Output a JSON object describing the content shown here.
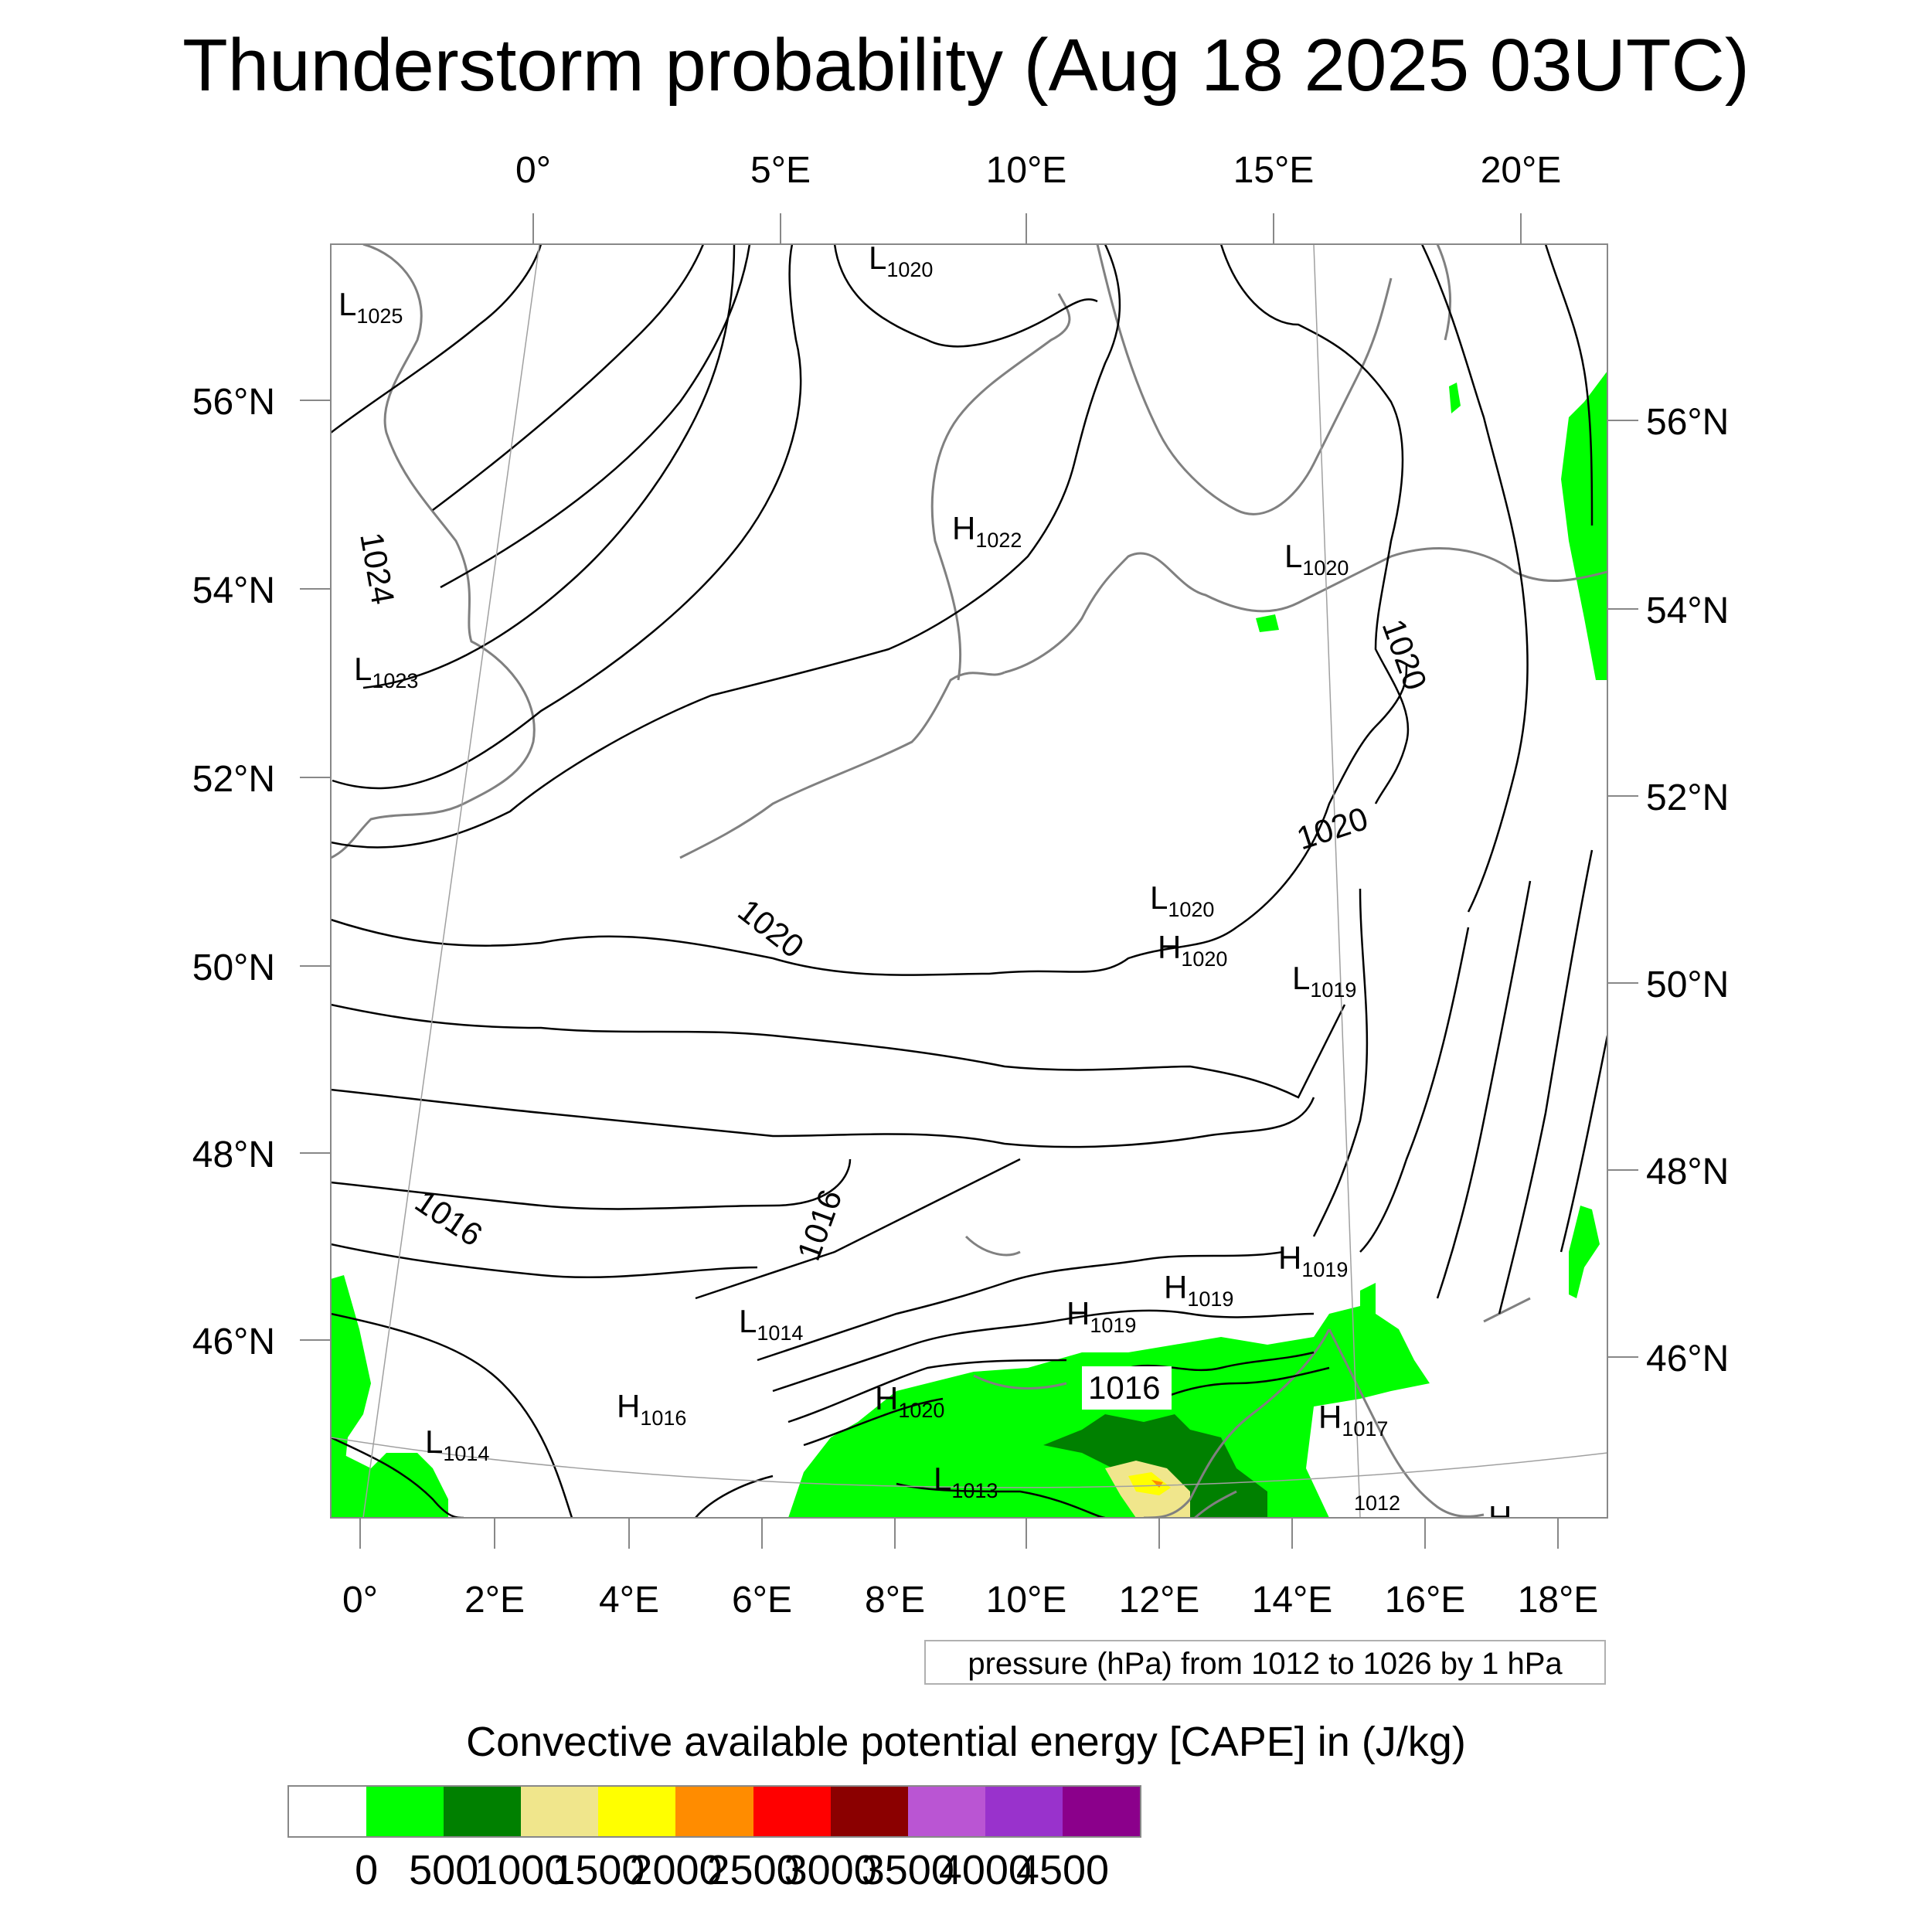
{
  "title": "Thunderstorm probability (Aug 18 2025 03UTC)",
  "map": {
    "top_lon_labels": [
      "0°",
      "5°E",
      "10°E",
      "15°E",
      "20°E"
    ],
    "bottom_lon_labels": [
      "0°",
      "2°E",
      "4°E",
      "6°E",
      "8°E",
      "10°E",
      "12°E",
      "14°E",
      "16°E",
      "18°E"
    ],
    "left_lat_labels": [
      "56°N",
      "54°N",
      "52°N",
      "50°N",
      "48°N",
      "46°N"
    ],
    "right_lat_labels": [
      "56°N",
      "54°N",
      "52°N",
      "50°N",
      "48°N",
      "46°N"
    ],
    "isobar_labels": [
      "1024",
      "1020",
      "1020",
      "1020",
      "1016",
      "1016",
      "1016"
    ],
    "pressure_centers": [
      {
        "type": "L",
        "value": "1025"
      },
      {
        "type": "L",
        "value": "1020"
      },
      {
        "type": "L",
        "value": "1023"
      },
      {
        "type": "H",
        "value": "1022"
      },
      {
        "type": "L",
        "value": "1020"
      },
      {
        "type": "L",
        "value": "1020"
      },
      {
        "type": "H",
        "value": "1020"
      },
      {
        "type": "L",
        "value": "1019"
      },
      {
        "type": "H",
        "value": "1019"
      },
      {
        "type": "H",
        "value": "1019"
      },
      {
        "type": "H",
        "value": "1019"
      },
      {
        "type": "L",
        "value": "1014"
      },
      {
        "type": "H",
        "value": "1016"
      },
      {
        "type": "H",
        "value": "1020"
      },
      {
        "type": "L",
        "value": "1014"
      },
      {
        "type": "L",
        "value": "1013"
      },
      {
        "type": "H",
        "value": "1017"
      },
      {
        "type": "",
        "value": "1012"
      },
      {
        "type": "H",
        "value": ""
      }
    ],
    "colors": {
      "coast": "#808080",
      "isobar": "#000000",
      "cape_low": "#00ff00",
      "cape_mid": "#008000"
    }
  },
  "pressure_note": "pressure (hPa) from 1012 to 1026 by 1 hPa",
  "colorbar": {
    "title": "Convective available potential energy [CAPE] in (J/kg)",
    "labels": [
      "0",
      "500",
      "1000",
      "1500",
      "2000",
      "2500",
      "3000",
      "3500",
      "4000",
      "4500"
    ],
    "colors": [
      "#ffffff",
      "#00ff00",
      "#008000",
      "#f0e68c",
      "#ffff00",
      "#ff8c00",
      "#ff0000",
      "#8b0000",
      "#ba55d3",
      "#9932cc",
      "#8b008b"
    ]
  }
}
